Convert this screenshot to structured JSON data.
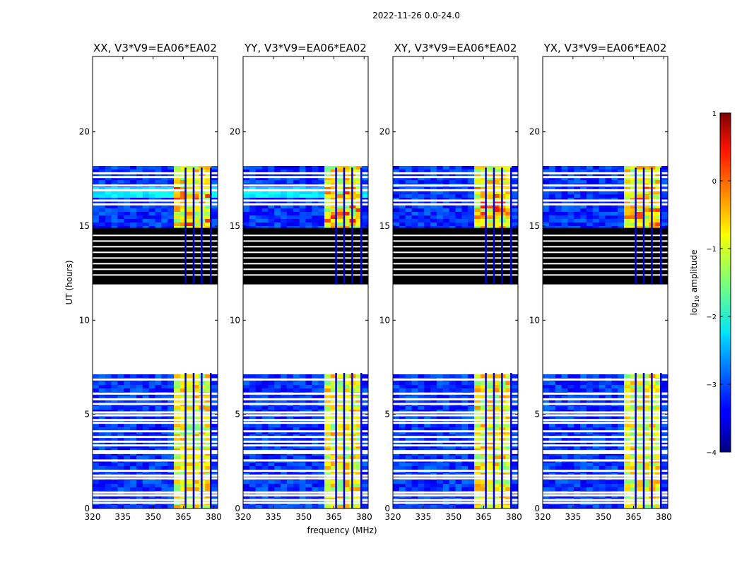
{
  "chart_data": {
    "type": "heatmap",
    "suptitle": "2022-11-26 0.0-24.0",
    "xlabel": "frequency (MHz)",
    "ylabel": "UT (hours)",
    "x_range": [
      320,
      382
    ],
    "x_ticks": [
      320,
      335,
      350,
      365,
      380
    ],
    "y_range": [
      0,
      24
    ],
    "y_ticks": [
      0,
      5,
      10,
      15,
      20
    ],
    "panels": [
      {
        "title": "XX, V3*V9=EA06*EA02"
      },
      {
        "title": "YY, V3*V9=EA06*EA02"
      },
      {
        "title": "XY, V3*V9=EA06*EA02"
      },
      {
        "title": "YX, V3*V9=EA06*EA02"
      }
    ],
    "data_blocks_ut": [
      [
        0.0,
        7.2
      ],
      [
        11.9,
        18.1
      ]
    ],
    "flagged_black_ut": [
      11.9,
      14.9
    ],
    "rfi_band_mhz": [
      360.5,
      379.5
    ],
    "colorbar": {
      "label": "log10 amplitude",
      "min": -4,
      "max": 1,
      "ticks": [
        1,
        0,
        -1,
        -2,
        -3,
        -4
      ],
      "colormap": "jet"
    }
  }
}
